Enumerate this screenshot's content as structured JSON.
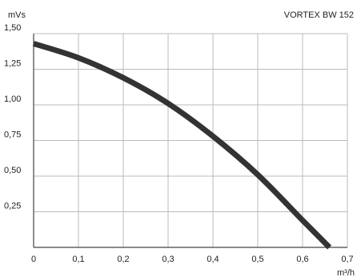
{
  "chart_data": {
    "type": "line",
    "title": "VORTEX BW 152",
    "xlabel": "m³/h",
    "ylabel": "mVs",
    "xlim": [
      0,
      0.7
    ],
    "ylim": [
      0,
      1.5
    ],
    "grid": true,
    "x_ticks": [
      "0",
      "0,1",
      "0,2",
      "0,3",
      "0,4",
      "0,5",
      "0,6",
      "0,7"
    ],
    "y_ticks": [
      "0,25",
      "0,50",
      "0,75",
      "1,00",
      "1,25",
      "1,50"
    ],
    "series": [
      {
        "x": [
          0,
          0.1,
          0.2,
          0.3,
          0.4,
          0.5,
          0.6,
          0.66
        ],
        "y": [
          1.43,
          1.33,
          1.19,
          1.01,
          0.78,
          0.51,
          0.19,
          0
        ]
      }
    ],
    "colors": {
      "curve": "#333333",
      "grid": "#bbbbbb",
      "axis": "#444444"
    }
  }
}
